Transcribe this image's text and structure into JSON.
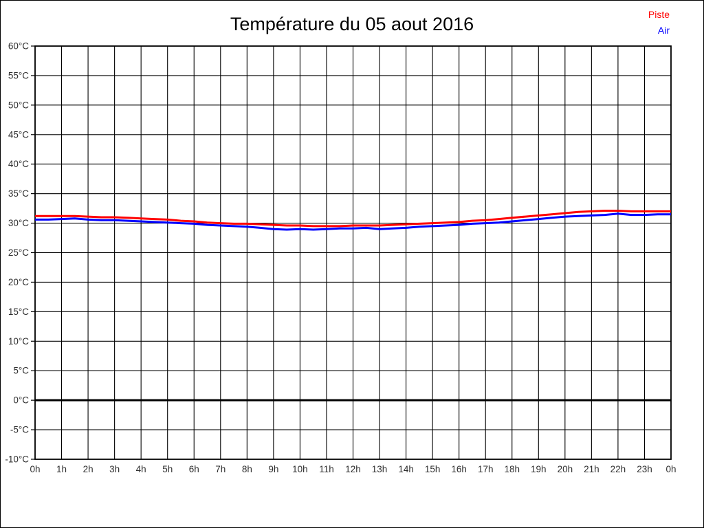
{
  "chart_data": {
    "type": "line",
    "title": "Température du 05 aout 2016",
    "xlabel": "",
    "ylabel": "",
    "xlim": [
      0,
      24
    ],
    "ylim": [
      -10,
      60
    ],
    "grid": true,
    "grid_color": "#000000",
    "background": "#ffffff",
    "zero_line": {
      "value": 0,
      "color": "#000000",
      "width": 3
    },
    "legend_position": "top-right",
    "y_ticks": [
      60,
      55,
      50,
      45,
      40,
      35,
      30,
      25,
      20,
      15,
      10,
      5,
      0,
      -5,
      -10
    ],
    "y_tick_labels": [
      "60°C",
      "55°C",
      "50°C",
      "45°C",
      "40°C",
      "35°C",
      "30°C",
      "25°C",
      "20°C",
      "15°C",
      "10°C",
      "5°C",
      "0°C",
      "-5°C",
      "-10°C"
    ],
    "x_ticks": [
      0,
      1,
      2,
      3,
      4,
      5,
      6,
      7,
      8,
      9,
      10,
      11,
      12,
      13,
      14,
      15,
      16,
      17,
      18,
      19,
      20,
      21,
      22,
      23,
      24
    ],
    "x_tick_labels": [
      "0h",
      "1h",
      "2h",
      "3h",
      "4h",
      "5h",
      "6h",
      "7h",
      "8h",
      "9h",
      "10h",
      "11h",
      "12h",
      "13h",
      "14h",
      "15h",
      "16h",
      "17h",
      "18h",
      "19h",
      "20h",
      "21h",
      "22h",
      "23h",
      "0h"
    ],
    "x": [
      0,
      0.5,
      1,
      1.5,
      2,
      2.5,
      3,
      3.5,
      4,
      4.5,
      5,
      5.5,
      6,
      6.5,
      7,
      7.5,
      8,
      8.5,
      9,
      9.5,
      10,
      10.5,
      11,
      11.5,
      12,
      12.5,
      13,
      13.5,
      14,
      14.5,
      15,
      15.5,
      16,
      16.5,
      17,
      17.5,
      18,
      18.5,
      19,
      19.5,
      20,
      20.5,
      21,
      21.5,
      22,
      22.5,
      23,
      23.5,
      24
    ],
    "series": [
      {
        "name": "Piste",
        "color": "#ff0000",
        "values": [
          31.2,
          31.2,
          31.2,
          31.2,
          31.1,
          31.0,
          31.0,
          30.9,
          30.8,
          30.7,
          30.6,
          30.4,
          30.3,
          30.1,
          30.0,
          29.9,
          29.9,
          29.8,
          29.7,
          29.6,
          29.6,
          29.5,
          29.5,
          29.5,
          29.6,
          29.6,
          29.6,
          29.7,
          29.8,
          29.9,
          30.0,
          30.1,
          30.2,
          30.4,
          30.5,
          30.7,
          30.9,
          31.1,
          31.3,
          31.5,
          31.7,
          31.9,
          32.0,
          32.1,
          32.1,
          32.0,
          32.0,
          32.0,
          32.0
        ]
      },
      {
        "name": "Air",
        "color": "#0000ff",
        "values": [
          30.6,
          30.6,
          30.7,
          30.8,
          30.6,
          30.5,
          30.5,
          30.4,
          30.3,
          30.2,
          30.1,
          30.0,
          29.9,
          29.7,
          29.6,
          29.5,
          29.4,
          29.2,
          29.0,
          28.9,
          29.0,
          28.9,
          29.0,
          29.1,
          29.1,
          29.2,
          29.0,
          29.1,
          29.2,
          29.4,
          29.5,
          29.6,
          29.7,
          29.9,
          30.0,
          30.1,
          30.3,
          30.5,
          30.7,
          30.9,
          31.1,
          31.2,
          31.3,
          31.4,
          31.6,
          31.4,
          31.4,
          31.5,
          31.5
        ]
      }
    ]
  }
}
